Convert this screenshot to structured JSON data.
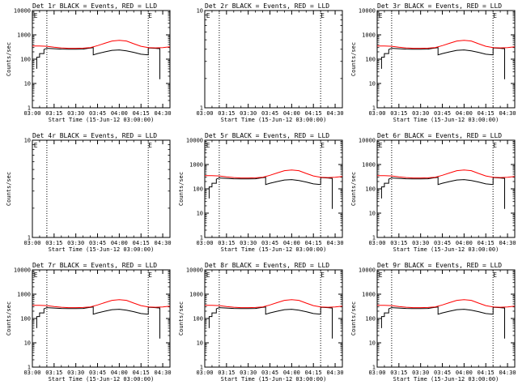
{
  "chart_data": [
    {
      "type": "line",
      "title": "Det 1r BLACK = Events, RED = LLD",
      "xlabel": "Start Time (15-Jun-12 03:00:00)",
      "ylabel": "Counts/sec",
      "ylog": true,
      "yticks": [
        "1",
        "10",
        "100",
        "1000",
        "10000"
      ],
      "xticks": [
        "03:00",
        "03:15",
        "03:30",
        "03:45",
        "04:00",
        "04:15",
        "04:30"
      ],
      "xlim_min": [
        0,
        95
      ],
      "ylim": [
        1,
        10000
      ],
      "vlines": [
        10,
        80
      ],
      "markers": [
        {
          "label": "E",
          "x": 1
        },
        {
          "label": "E",
          "x": 80
        }
      ],
      "series": [
        {
          "name": "Events",
          "color": "#000000",
          "kind": "events"
        },
        {
          "name": "LLD",
          "color": "#ff0000",
          "kind": "lld"
        }
      ]
    },
    {
      "type": "line",
      "title": "Det 2r BLACK = Events, RED = LLD",
      "xlabel": "Start Time (15-Jun-12 03:00:00)",
      "ylabel": "",
      "ylog": true,
      "yticks": [
        "1",
        "10"
      ],
      "xticks": [
        "03:00",
        "03:15",
        "03:30",
        "03:45",
        "04:00",
        "04:15",
        "04:30"
      ],
      "xlim_min": [
        0,
        95
      ],
      "ylim": [
        1,
        10
      ],
      "vlines": [
        10,
        80
      ],
      "markers": [
        {
          "label": "E",
          "x": 1
        },
        {
          "label": "E",
          "x": 80
        }
      ],
      "series": []
    },
    {
      "type": "line",
      "title": "Det 3r BLACK = Events, RED = LLD",
      "xlabel": "Start Time (15-Jun-12 03:00:00)",
      "ylabel": "Counts/sec",
      "ylog": true,
      "yticks": [
        "1",
        "10",
        "100",
        "1000",
        "10000"
      ],
      "xticks": [
        "03:00",
        "03:15",
        "03:30",
        "03:45",
        "04:00",
        "04:15",
        "04:30"
      ],
      "xlim_min": [
        0,
        95
      ],
      "ylim": [
        1,
        10000
      ],
      "vlines": [
        10,
        80
      ],
      "markers": [
        {
          "label": "E",
          "x": 1
        },
        {
          "label": "E",
          "x": 80
        }
      ],
      "series": [
        {
          "name": "Events",
          "color": "#000000",
          "kind": "events"
        },
        {
          "name": "LLD",
          "color": "#ff0000",
          "kind": "lld"
        }
      ]
    },
    {
      "type": "line",
      "title": "Det 4r BLACK = Events, RED = LLD",
      "xlabel": "Start Time (15-Jun-12 03:00:00)",
      "ylabel": "Counts/sec",
      "ylog": true,
      "yticks": [
        "1",
        "10"
      ],
      "xticks": [
        "03:00",
        "03:15",
        "03:30",
        "03:45",
        "04:00",
        "04:15",
        "04:30"
      ],
      "xlim_min": [
        0,
        95
      ],
      "ylim": [
        1,
        10
      ],
      "vlines": [
        10,
        80
      ],
      "markers": [
        {
          "label": "E",
          "x": 1
        },
        {
          "label": "E",
          "x": 80
        }
      ],
      "series": []
    },
    {
      "type": "line",
      "title": "Det 5r BLACK = Events, RED = LLD",
      "xlabel": "Start Time (15-Jun-12 03:00:00)",
      "ylabel": "Counts/sec",
      "ylog": true,
      "yticks": [
        "1",
        "10",
        "100",
        "1000",
        "10000"
      ],
      "xticks": [
        "03:00",
        "03:15",
        "03:30",
        "03:45",
        "04:00",
        "04:15",
        "04:30"
      ],
      "xlim_min": [
        0,
        95
      ],
      "ylim": [
        1,
        10000
      ],
      "vlines": [
        10,
        80
      ],
      "markers": [
        {
          "label": "E",
          "x": 1
        },
        {
          "label": "E",
          "x": 80
        }
      ],
      "series": [
        {
          "name": "Events",
          "color": "#000000",
          "kind": "events"
        },
        {
          "name": "LLD",
          "color": "#ff0000",
          "kind": "lld"
        }
      ]
    },
    {
      "type": "line",
      "title": "Det 6r BLACK = Events, RED = LLD",
      "xlabel": "Start Time (15-Jun-12 03:00:00)",
      "ylabel": "Counts/sec",
      "ylog": true,
      "yticks": [
        "1",
        "10",
        "100",
        "1000",
        "10000"
      ],
      "xticks": [
        "03:00",
        "03:15",
        "03:30",
        "03:45",
        "04:00",
        "04:15",
        "04:30"
      ],
      "xlim_min": [
        0,
        95
      ],
      "ylim": [
        1,
        10000
      ],
      "vlines": [
        10,
        80
      ],
      "markers": [
        {
          "label": "E",
          "x": 1
        },
        {
          "label": "E",
          "x": 80
        }
      ],
      "series": [
        {
          "name": "Events",
          "color": "#000000",
          "kind": "events"
        },
        {
          "name": "LLD",
          "color": "#ff0000",
          "kind": "lld"
        }
      ]
    },
    {
      "type": "line",
      "title": "Det 7r BLACK = Events, RED = LLD",
      "xlabel": "Start Time (15-Jun-12 03:00:00)",
      "ylabel": "Counts/sec",
      "ylog": true,
      "yticks": [
        "1",
        "10",
        "100",
        "1000",
        "10000"
      ],
      "xticks": [
        "03:00",
        "03:15",
        "03:30",
        "03:45",
        "04:00",
        "04:15",
        "04:30"
      ],
      "xlim_min": [
        0,
        95
      ],
      "ylim": [
        1,
        10000
      ],
      "vlines": [
        10,
        80
      ],
      "markers": [
        {
          "label": "E",
          "x": 1
        },
        {
          "label": "E",
          "x": 80
        }
      ],
      "series": [
        {
          "name": "Events",
          "color": "#000000",
          "kind": "events"
        },
        {
          "name": "LLD",
          "color": "#ff0000",
          "kind": "lld"
        }
      ]
    },
    {
      "type": "line",
      "title": "Det 8r BLACK = Events, RED = LLD",
      "xlabel": "Start Time (15-Jun-12 03:00:00)",
      "ylabel": "Counts/sec",
      "ylog": true,
      "yticks": [
        "1",
        "10",
        "100",
        "1000",
        "10000"
      ],
      "xticks": [
        "03:00",
        "03:15",
        "03:30",
        "03:45",
        "04:00",
        "04:15",
        "04:30"
      ],
      "xlim_min": [
        0,
        95
      ],
      "ylim": [
        1,
        10000
      ],
      "vlines": [
        10,
        80
      ],
      "markers": [
        {
          "label": "E",
          "x": 1
        },
        {
          "label": "E",
          "x": 80
        }
      ],
      "series": [
        {
          "name": "Events",
          "color": "#000000",
          "kind": "events"
        },
        {
          "name": "LLD",
          "color": "#ff0000",
          "kind": "lld"
        }
      ]
    },
    {
      "type": "line",
      "title": "Det 9r BLACK = Events, RED = LLD",
      "xlabel": "Start Time (15-Jun-12 03:00:00)",
      "ylabel": "Counts/sec",
      "ylog": true,
      "yticks": [
        "1",
        "10",
        "100",
        "1000",
        "10000"
      ],
      "xticks": [
        "03:00",
        "03:15",
        "03:30",
        "03:45",
        "04:00",
        "04:15",
        "04:30"
      ],
      "xlim_min": [
        0,
        95
      ],
      "ylim": [
        1,
        10000
      ],
      "vlines": [
        10,
        80
      ],
      "markers": [
        {
          "label": "E",
          "x": 1
        },
        {
          "label": "E",
          "x": 80
        }
      ],
      "series": [
        {
          "name": "Events",
          "color": "#000000",
          "kind": "events"
        },
        {
          "name": "LLD",
          "color": "#ff0000",
          "kind": "lld"
        }
      ]
    }
  ],
  "curves": {
    "lld_x": [
      0,
      5,
      10,
      15,
      20,
      25,
      30,
      35,
      40,
      45,
      50,
      55,
      60,
      65,
      70,
      75,
      80,
      85,
      90,
      95
    ],
    "lld_y": [
      350,
      350,
      340,
      310,
      290,
      280,
      280,
      285,
      300,
      360,
      450,
      560,
      600,
      560,
      430,
      340,
      300,
      290,
      300,
      320
    ],
    "ev_x": [
      3,
      3,
      5,
      5,
      8,
      8,
      10,
      15,
      20,
      25,
      30,
      35,
      38,
      42,
      42,
      45,
      50,
      55,
      60,
      65,
      70,
      75,
      80,
      80,
      85,
      88,
      88
    ],
    "ev_y": [
      40,
      120,
      120,
      170,
      170,
      250,
      280,
      270,
      260,
      255,
      255,
      260,
      275,
      300,
      150,
      170,
      200,
      230,
      240,
      220,
      190,
      160,
      150,
      290,
      280,
      270,
      15
    ]
  }
}
